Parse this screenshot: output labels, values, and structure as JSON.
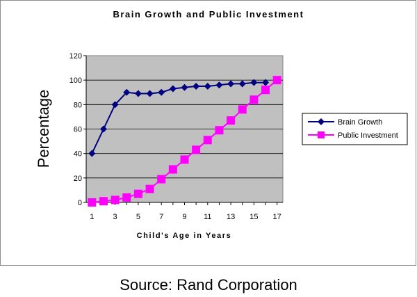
{
  "chart_data": {
    "type": "line",
    "title": "Brain Growth and Public Investment",
    "xlabel": "Child's Age in Years",
    "ylabel": "Percentage",
    "ylim": [
      0,
      120
    ],
    "yticks": [
      0,
      20,
      40,
      60,
      80,
      100,
      120
    ],
    "x": [
      1,
      2,
      3,
      4,
      5,
      6,
      7,
      8,
      9,
      10,
      11,
      12,
      13,
      14,
      15,
      16,
      17
    ],
    "xtick_labels": [
      "1",
      "3",
      "5",
      "7",
      "9",
      "11",
      "13",
      "15",
      "17"
    ],
    "xtick_values": [
      1,
      3,
      5,
      7,
      9,
      11,
      13,
      15,
      17
    ],
    "grid": true,
    "legend": "right",
    "plot_bg": "#c0c0c0",
    "series": [
      {
        "name": "Brain Growth",
        "color": "#000080",
        "marker": "diamond",
        "x": [
          1,
          2,
          3,
          4,
          5,
          6,
          7,
          8,
          9,
          10,
          11,
          12,
          13,
          14,
          15,
          16
        ],
        "values": [
          40,
          60,
          80,
          90,
          89,
          89,
          90,
          93,
          94,
          95,
          95,
          96,
          97,
          97,
          98,
          98
        ]
      },
      {
        "name": "Public Investment",
        "color": "#ff00ff",
        "marker": "square",
        "x": [
          1,
          2,
          3,
          4,
          5,
          6,
          7,
          8,
          9,
          10,
          11,
          12,
          13,
          14,
          15,
          16,
          17
        ],
        "values": [
          0,
          1,
          2,
          4,
          7,
          11,
          19,
          27,
          35,
          43,
          51,
          59,
          67,
          76,
          84,
          92,
          100
        ]
      }
    ]
  },
  "source": "Source: Rand Corporation"
}
